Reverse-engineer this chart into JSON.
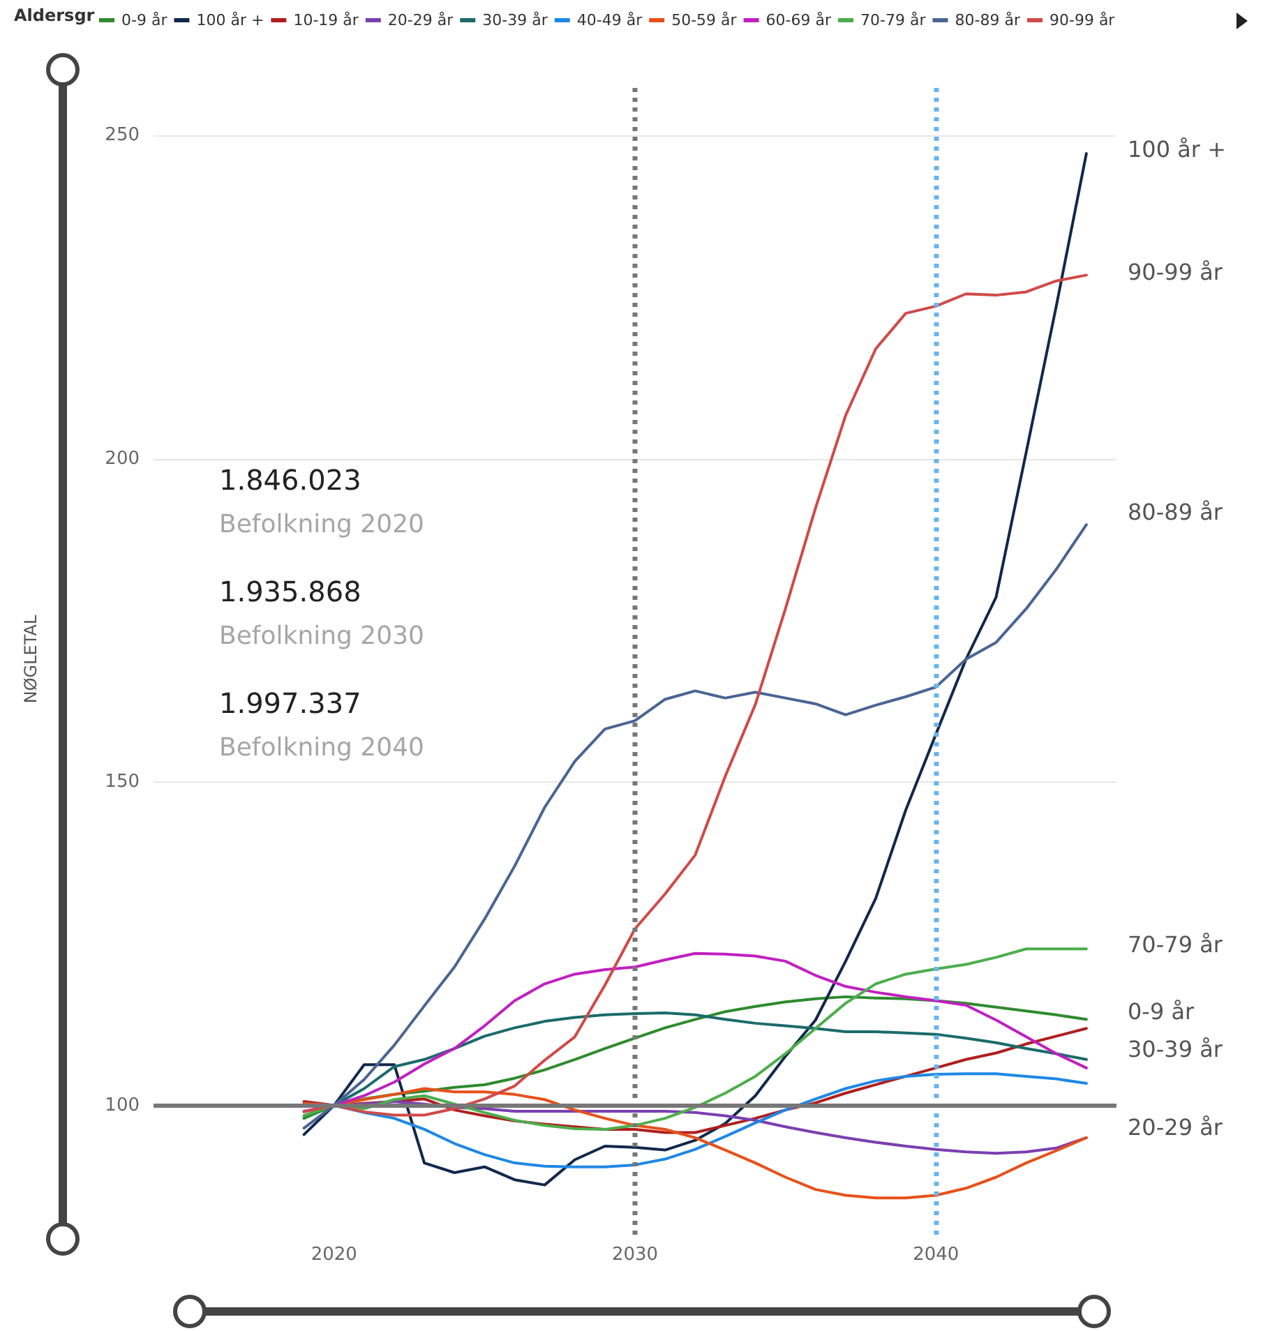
{
  "chart_data": {
    "type": "line",
    "legend_title": "Aldersgr",
    "ylabel": "NØGLETAL",
    "legend": "top",
    "grid": "y",
    "line_style": "solid",
    "marker": "none",
    "x": [
      2019,
      2020,
      2021,
      2022,
      2023,
      2024,
      2025,
      2026,
      2027,
      2028,
      2029,
      2030,
      2031,
      2032,
      2033,
      2034,
      2035,
      2036,
      2037,
      2038,
      2039,
      2040,
      2041,
      2042,
      2043,
      2044,
      2045
    ],
    "xlim": [
      2014,
      2046
    ],
    "xticks": [
      2020,
      2030,
      2040
    ],
    "ylim": [
      80,
      258
    ],
    "yticks": [
      100,
      150,
      200,
      250
    ],
    "series": [
      {
        "name": "0-9 år",
        "color": "#2e8b2e",
        "values": [
          98,
          100,
          101,
          101.7,
          102.2,
          102.8,
          103.2,
          104.2,
          105.5,
          107.1,
          108.8,
          110.4,
          112,
          113.3,
          114.5,
          115.3,
          116,
          116.5,
          116.8,
          116.6,
          116.5,
          116.2,
          115.8,
          115.2,
          114.6,
          114,
          113.3
        ]
      },
      {
        "name": "100 år +",
        "color": "#12284c",
        "values": [
          95.5,
          100,
          106.3,
          106.3,
          91.1,
          89.6,
          90.5,
          88.5,
          87.7,
          91.6,
          93.7,
          93.5,
          93.1,
          94.6,
          97.2,
          101.5,
          107.6,
          113.2,
          122.3,
          132,
          145.7,
          157.4,
          169,
          178.6,
          201,
          223.6,
          247.2
        ]
      },
      {
        "name": "10-19 år",
        "color": "#b01e1e",
        "values": [
          100.6,
          100,
          100.3,
          100.6,
          101,
          99.3,
          98.4,
          97.6,
          97.1,
          96.7,
          96.3,
          96.3,
          95.8,
          95.8,
          96.9,
          98,
          99.3,
          100.4,
          101.9,
          103.2,
          104.5,
          105.8,
          107.1,
          108.1,
          109.5,
          110.7,
          111.9
        ]
      },
      {
        "name": "20-29 år",
        "color": "#7b3fb0",
        "values": [
          100.3,
          100,
          100.2,
          100.6,
          100.2,
          99.7,
          99.5,
          99.1,
          99.1,
          99.1,
          99.1,
          99.1,
          99.1,
          98.9,
          98.4,
          97.7,
          96.7,
          95.8,
          95,
          94.3,
          93.7,
          93.2,
          92.8,
          92.6,
          92.8,
          93.4,
          95
        ]
      },
      {
        "name": "30-39 år",
        "color": "#1b6b6b",
        "values": [
          98.4,
          100,
          102.6,
          106,
          107.1,
          108.8,
          110.7,
          112,
          113,
          113.6,
          114,
          114.2,
          114.3,
          114,
          113.3,
          112.7,
          112.3,
          111.9,
          111.4,
          111.4,
          111.2,
          111,
          110.4,
          109.7,
          108.8,
          108,
          107.1
        ]
      },
      {
        "name": "40-49 år",
        "color": "#1e88e5",
        "values": [
          100.2,
          100,
          98.9,
          98,
          96.3,
          94.1,
          92.4,
          91.1,
          90.6,
          90.5,
          90.5,
          90.8,
          91.7,
          93.2,
          95.2,
          97.3,
          99.3,
          101,
          102.6,
          103.8,
          104.5,
          104.8,
          104.9,
          104.9,
          104.5,
          104.1,
          103.4
        ]
      },
      {
        "name": "50-59 år",
        "color": "#e8501a",
        "values": [
          100.3,
          100,
          100.9,
          101.7,
          102.6,
          102.1,
          102.1,
          101.7,
          100.9,
          99.3,
          98,
          96.9,
          96.3,
          95,
          93.1,
          91.1,
          88.9,
          87,
          86.1,
          85.7,
          85.7,
          86.1,
          87.2,
          88.9,
          91.1,
          93,
          95
        ]
      },
      {
        "name": "60-69 år",
        "color": "#c020c0",
        "values": [
          99.1,
          100,
          101.5,
          103.6,
          106.4,
          108.8,
          112.3,
          116.2,
          118.8,
          120.3,
          121,
          121.4,
          122.5,
          123.5,
          123.4,
          123.1,
          122.3,
          120.1,
          118.4,
          117.5,
          116.8,
          116.2,
          115.5,
          113.2,
          110.6,
          108,
          105.8
        ]
      },
      {
        "name": "70-79 år",
        "color": "#4cae4c",
        "values": [
          98.4,
          100,
          99.5,
          100.9,
          101.5,
          100.2,
          98.9,
          97.7,
          96.9,
          96.4,
          96.3,
          96.9,
          98,
          99.7,
          101.9,
          104.5,
          108,
          111.9,
          115.8,
          118.8,
          120.3,
          121.1,
          121.8,
          122.9,
          124.2,
          124.2,
          124.2
        ]
      },
      {
        "name": "80-89 år",
        "color": "#4a6494",
        "values": [
          96.5,
          100,
          104,
          109.3,
          115.4,
          121.4,
          128.8,
          137,
          146.1,
          153.2,
          158.2,
          159.5,
          162.8,
          164.1,
          163,
          163.9,
          163,
          162.1,
          160.4,
          161.9,
          163.2,
          164.7,
          169,
          171.6,
          176.8,
          182.9,
          189.8
        ]
      },
      {
        "name": "90-99 år",
        "color": "#d04a48",
        "values": [
          99,
          100,
          99,
          98.5,
          98.5,
          99.5,
          101,
          103,
          107,
          110.6,
          118.6,
          127.3,
          132.7,
          138.7,
          150.9,
          162,
          176.8,
          192.4,
          206.7,
          217,
          222.5,
          223.6,
          225.5,
          225.3,
          225.8,
          227.5,
          228.4
        ]
      }
    ],
    "ref_lines": [
      {
        "axis": "x",
        "value": 2030,
        "color": "#777777",
        "line_style": "dotted"
      },
      {
        "axis": "x",
        "value": 2040,
        "color": "#6ab4ec",
        "line_style": "dotted"
      },
      {
        "axis": "y",
        "value": 100,
        "color": "#777777",
        "line_style": "solid"
      }
    ],
    "annotations": [
      "1.846.023",
      "Befolkning 2020",
      "1.935.868",
      "Befolkning 2030",
      "1.997.337",
      "Befolkning 2040",
      "100 år +",
      "90-99 år",
      "80-89 år",
      "70-79 år",
      "0-9 år",
      "30-39 år",
      "20-29 år"
    ]
  }
}
